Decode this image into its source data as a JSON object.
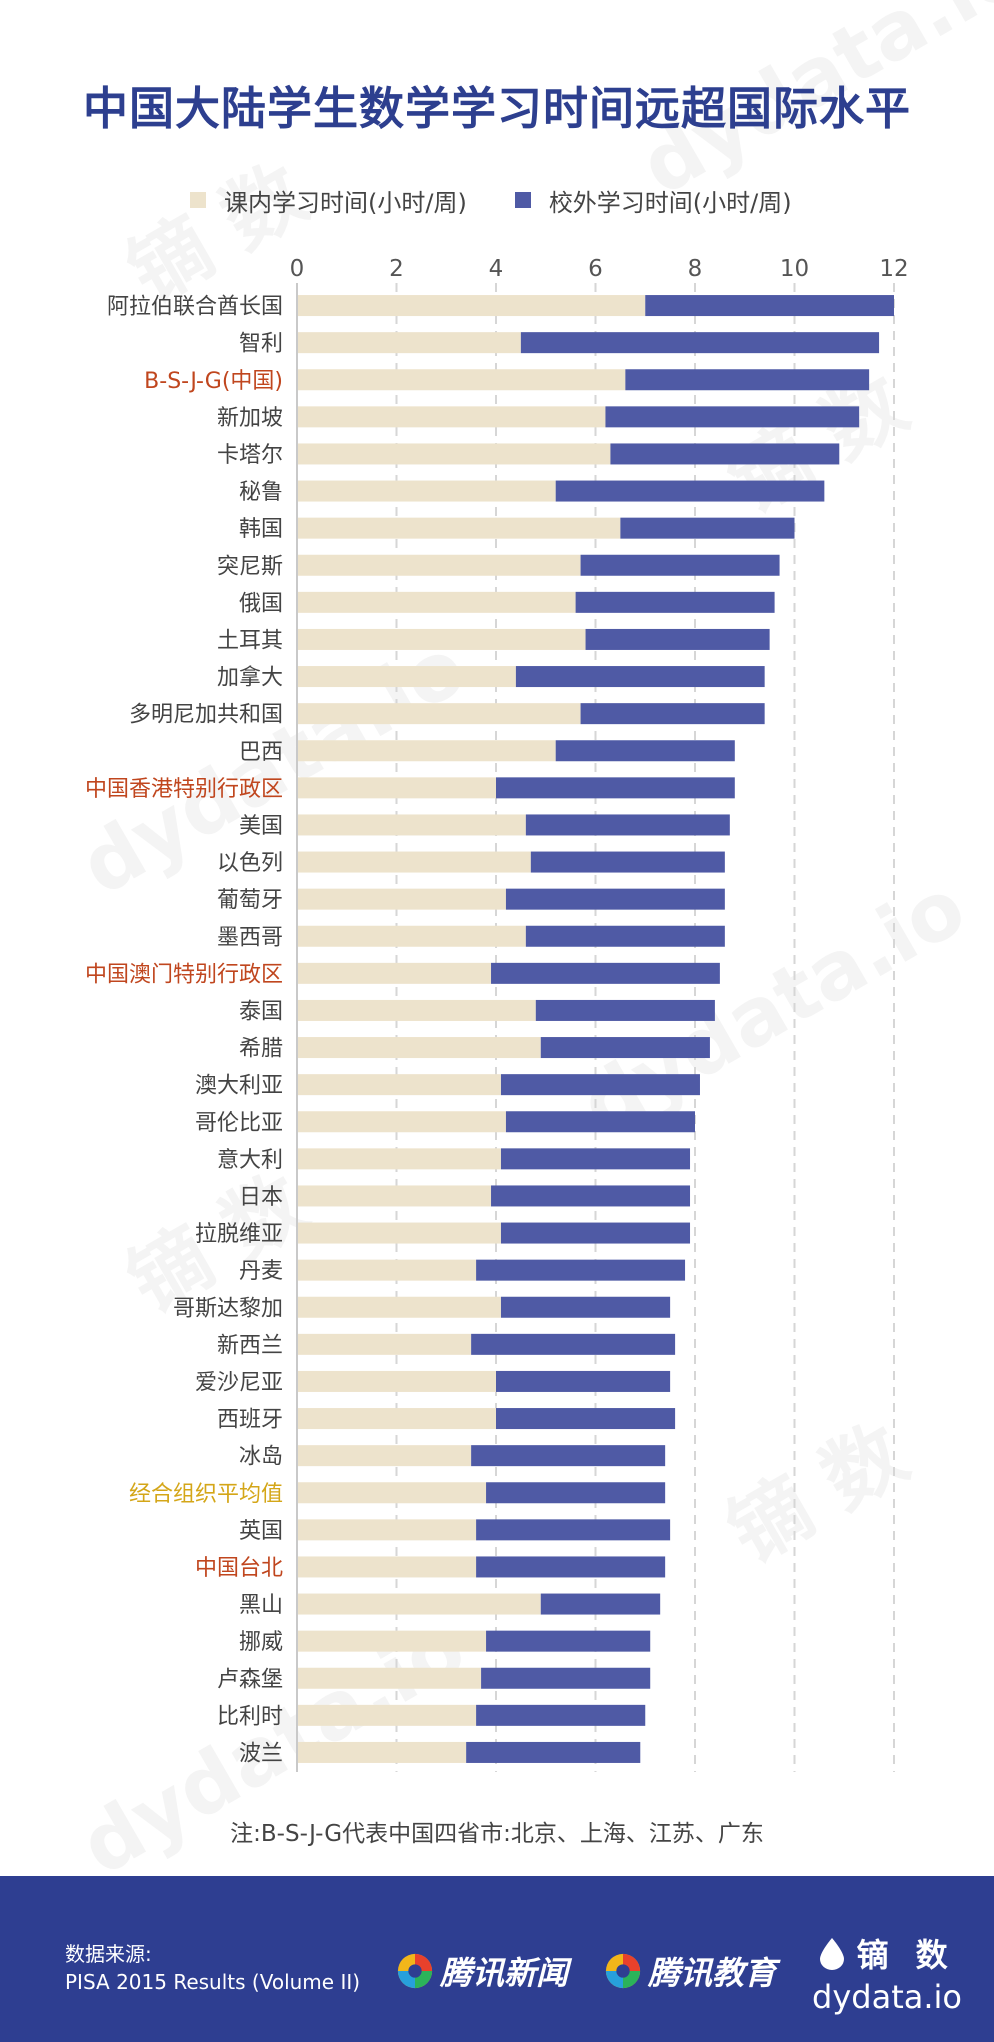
{
  "title": "中国大陆学生数学学习时间远超国际水平",
  "legend": [
    {
      "label": "课内学习时间(小时/周)",
      "color": "#ede3cc"
    },
    {
      "label": "校外学习时间(小时/周)",
      "color": "#4f5aa5"
    }
  ],
  "watermark": {
    "cn": "镝 数",
    "en": "dydata.io"
  },
  "chart_data": {
    "type": "bar",
    "orientation": "horizontal",
    "stacked": true,
    "xlim": [
      0,
      12
    ],
    "xticks": [
      "0",
      "2",
      "4",
      "6",
      "8",
      "10",
      "12"
    ],
    "grid": true,
    "legend_position": "top",
    "categories": [
      "阿拉伯联合酋长国",
      "智利",
      "B-S-J-G(中国)",
      "新加坡",
      "卡塔尔",
      "秘鲁",
      "韩国",
      "突尼斯",
      "俄国",
      "土耳其",
      "加拿大",
      "多明尼加共和国",
      "巴西",
      "中国香港特别行政区",
      "美国",
      "以色列",
      "葡萄牙",
      "墨西哥",
      "中国澳门特别行政区",
      "泰国",
      "希腊",
      "澳大利亚",
      "哥伦比亚",
      "意大利",
      "日本",
      "拉脱维亚",
      "丹麦",
      "哥斯达黎加",
      "新西兰",
      "爱沙尼亚",
      "西班牙",
      "冰岛",
      "经合组织平均值",
      "英国",
      "中国台北",
      "黑山",
      "挪威",
      "卢森堡",
      "比利时",
      "波兰"
    ],
    "label_colors": {
      "B-S-J-G(中国)": "#c0461e",
      "中国香港特别行政区": "#c0461e",
      "中国澳门特别行政区": "#c0461e",
      "中国台北": "#c0461e",
      "经合组织平均值": "#d4a618"
    },
    "default_label_color": "#444444",
    "series": [
      {
        "name": "课内学习时间(小时/周)",
        "color": "#ede3cc",
        "values": [
          7.0,
          4.5,
          6.6,
          6.2,
          6.3,
          5.2,
          6.5,
          5.7,
          5.6,
          5.8,
          4.4,
          5.7,
          5.2,
          4.0,
          4.6,
          4.7,
          4.2,
          4.6,
          3.9,
          4.8,
          4.9,
          4.1,
          4.2,
          4.1,
          3.9,
          4.1,
          3.6,
          4.1,
          3.5,
          4.0,
          4.0,
          3.5,
          3.8,
          3.6,
          3.6,
          4.9,
          3.8,
          3.7,
          3.6,
          3.4
        ]
      },
      {
        "name": "校外学习时间(小时/周)",
        "color": "#4f5aa5",
        "values": [
          5.0,
          7.2,
          4.9,
          5.1,
          4.6,
          5.4,
          3.5,
          4.0,
          4.0,
          3.7,
          5.0,
          3.7,
          3.6,
          4.8,
          4.1,
          3.9,
          4.4,
          4.0,
          4.6,
          3.6,
          3.4,
          4.0,
          3.8,
          3.8,
          4.0,
          3.8,
          4.2,
          3.4,
          4.1,
          3.5,
          3.6,
          3.9,
          3.6,
          3.9,
          3.8,
          2.4,
          3.3,
          3.4,
          3.4,
          3.5
        ]
      }
    ]
  },
  "note": "注:B-S-J-G代表中国四省市:北京、上海、江苏、广东",
  "footer": {
    "source_label": "数据来源:",
    "source_text": "PISA 2015 Results (Volume II)",
    "partner1": "腾讯新闻",
    "partner2": "腾讯教育",
    "brand_cn": "镝 数",
    "brand_en": "dydata.io"
  }
}
